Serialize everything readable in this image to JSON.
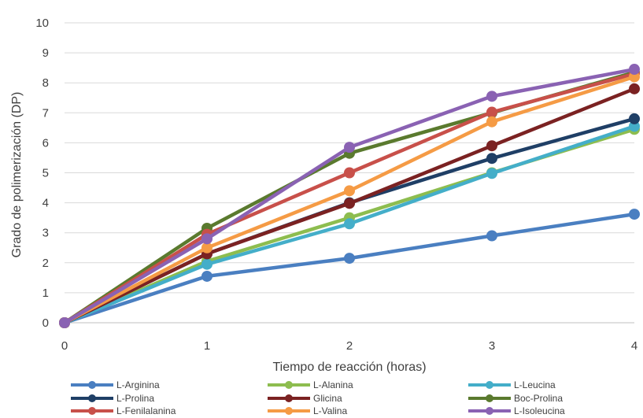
{
  "chart_data": {
    "type": "line",
    "title": "",
    "xlabel": "Tiempo de reacción (horas)",
    "ylabel": "Grado de polimerización (DP)",
    "x": [
      0,
      1,
      2,
      3,
      4
    ],
    "x_tick_labels": [
      "0",
      "1",
      "2",
      "3",
      "4"
    ],
    "y_tick_labels": [
      "0",
      "1",
      "2",
      "3",
      "4",
      "5",
      "6",
      "7",
      "8",
      "9",
      "10"
    ],
    "xlim": [
      0,
      4
    ],
    "ylim": [
      0,
      10
    ],
    "grid": "horizontal",
    "legend_position": "bottom",
    "series": [
      {
        "name": "L-Arginina",
        "color": "#4a7fc1",
        "values": [
          0,
          1.55,
          2.15,
          2.9,
          3.62
        ]
      },
      {
        "name": "L-Alanina",
        "color": "#8dbd4f",
        "values": [
          0,
          2.05,
          3.5,
          5.0,
          6.45
        ]
      },
      {
        "name": "L-Leucina",
        "color": "#44aec9",
        "values": [
          0,
          1.95,
          3.3,
          4.98,
          6.55
        ]
      },
      {
        "name": "L-Prolina",
        "color": "#1f3f66",
        "values": [
          0,
          2.3,
          4.0,
          5.48,
          6.8
        ]
      },
      {
        "name": "Glicina",
        "color": "#7b2222",
        "values": [
          0,
          2.3,
          3.98,
          5.9,
          7.8
        ]
      },
      {
        "name": "Boc-Prolina",
        "color": "#5a7a2e",
        "values": [
          0,
          3.15,
          5.65,
          7.0,
          8.35
        ]
      },
      {
        "name": "L-Fenilalanina",
        "color": "#c8504a",
        "values": [
          0,
          2.95,
          5.0,
          7.02,
          8.3
        ]
      },
      {
        "name": "L-Valina",
        "color": "#f59b45",
        "values": [
          0,
          2.5,
          4.4,
          6.7,
          8.2
        ]
      },
      {
        "name": "L-Isoleucina",
        "color": "#8a62b3",
        "values": [
          0,
          2.8,
          5.85,
          7.55,
          8.45
        ]
      }
    ]
  }
}
